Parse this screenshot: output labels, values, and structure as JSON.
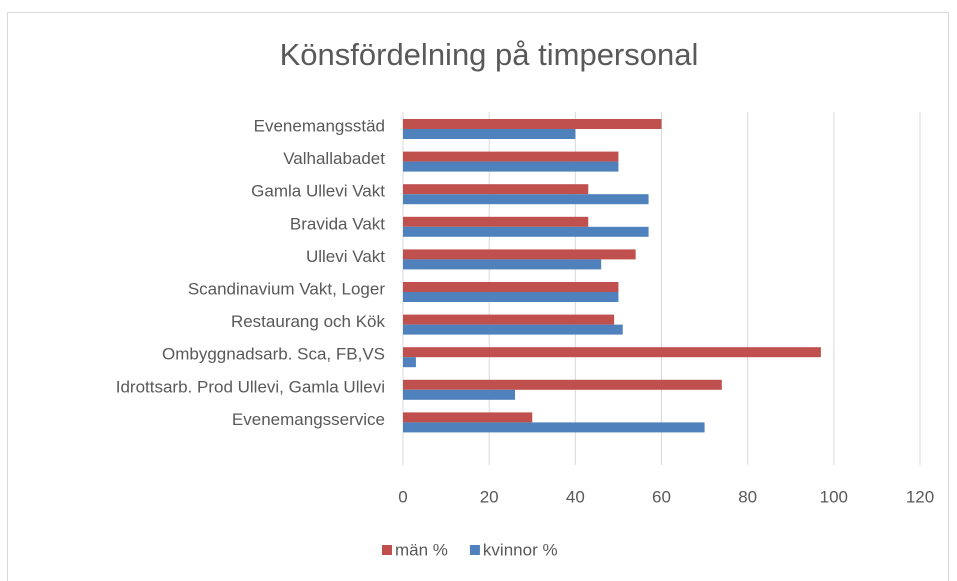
{
  "chart_data": {
    "type": "barh",
    "title": "Könsfördelning på timpersonal",
    "categories": [
      "Evenemangsstäd",
      "Valhallabadet",
      "Gamla Ullevi Vakt",
      "Bravida Vakt",
      "Ullevi Vakt",
      "Scandinavium Vakt, Loger",
      "Restaurang och Kök",
      "Ombyggnadsarb. Sca, FB,VS",
      "Idrottsarb. Prod Ullevi, Gamla Ullevi",
      "Evenemangsservice"
    ],
    "series": [
      {
        "name": "män %",
        "color": "#c0504d",
        "values": [
          60,
          50,
          43,
          43,
          54,
          50,
          49,
          97,
          74,
          30
        ]
      },
      {
        "name": "kvinnor %",
        "color": "#4f81bd",
        "values": [
          40,
          50,
          57,
          57,
          46,
          50,
          51,
          3,
          26,
          70
        ]
      }
    ],
    "xlim": [
      0,
      120
    ],
    "xticks": [
      0,
      20,
      40,
      60,
      80,
      100,
      120
    ],
    "grid": true,
    "legend": "bottom"
  }
}
